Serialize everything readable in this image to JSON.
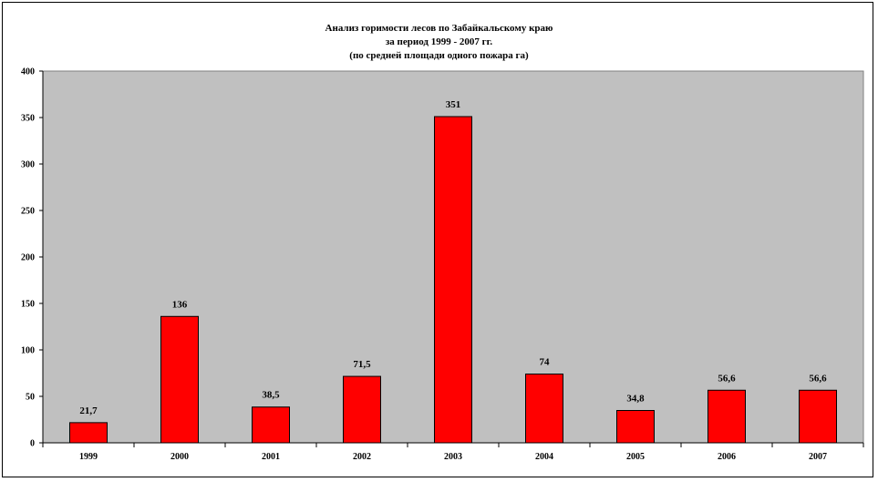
{
  "chart_data": {
    "type": "bar",
    "title_lines": [
      "Анализ горимости лесов по Забайкальскому краю",
      "за период 1999 - 2007 гг.",
      "(по средней площади одного пожара га)"
    ],
    "categories": [
      "1999",
      "2000",
      "2001",
      "2002",
      "2003",
      "2004",
      "2005",
      "2006",
      "2007"
    ],
    "values": [
      21.7,
      136,
      38.5,
      71.5,
      351,
      74,
      34.8,
      56.6,
      56.6
    ],
    "data_labels": [
      "21,7",
      "136",
      "38,5",
      "71,5",
      "351",
      "74",
      "34,8",
      "56,6",
      "56,6"
    ],
    "yticks": [
      "0",
      "50",
      "100",
      "150",
      "200",
      "250",
      "300",
      "350",
      "400"
    ],
    "ylim": [
      0,
      400
    ],
    "grid": false,
    "legend": "none",
    "colors": {
      "bar": "#ff0000",
      "bar_border": "#000000",
      "plot_background": "#c0c0c0",
      "page_background": "#ffffff"
    }
  }
}
